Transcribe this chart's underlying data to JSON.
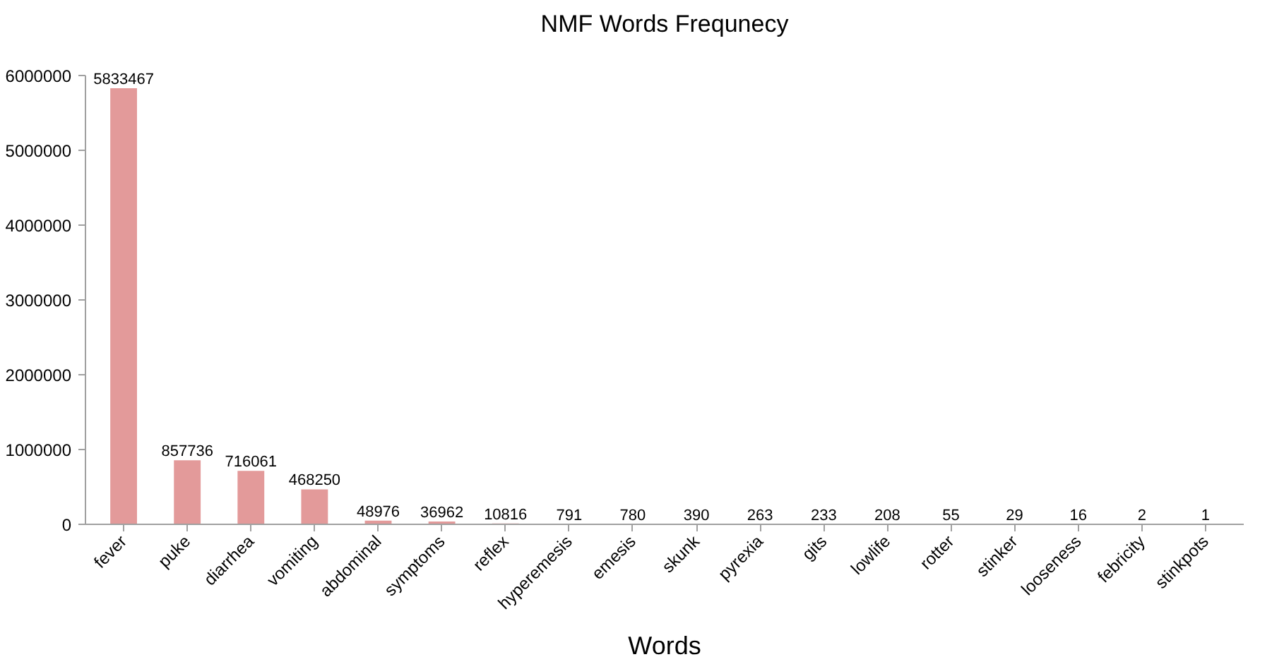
{
  "chart_data": {
    "type": "bar",
    "title": "NMF Words Frequnecy",
    "xlabel": "Words",
    "categories": [
      "fever",
      "puke",
      "diarrhea",
      "vomiting",
      "abdominal",
      "symptoms",
      "reflex",
      "hyperemesis",
      "emesis",
      "skunk",
      "pyrexia",
      "gits",
      "lowlife",
      "rotter",
      "stinker",
      "looseness",
      "febricity",
      "stinkpots"
    ],
    "values": [
      5833467,
      857736,
      716061,
      468250,
      48976,
      36962,
      10816,
      791,
      780,
      390,
      263,
      233,
      208,
      55,
      29,
      16,
      2,
      1
    ],
    "color": "#e39a9a",
    "ylim": [
      0,
      6000000
    ],
    "yticks": [
      0,
      1000000,
      2000000,
      3000000,
      4000000,
      5000000,
      6000000
    ],
    "data_labels": true,
    "grid": false
  }
}
